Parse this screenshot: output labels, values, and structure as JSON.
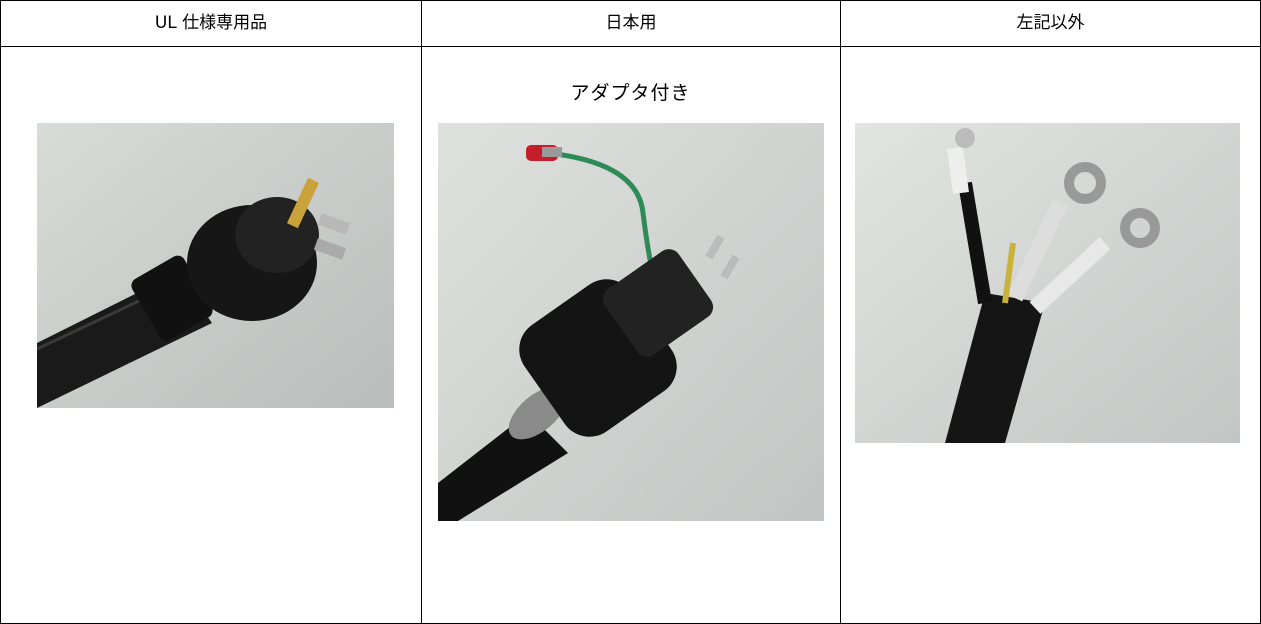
{
  "table": {
    "header": [
      "UL 仕様専用品",
      "日本用",
      "左記以外"
    ],
    "adapter_caption": "アダプタ付き"
  }
}
